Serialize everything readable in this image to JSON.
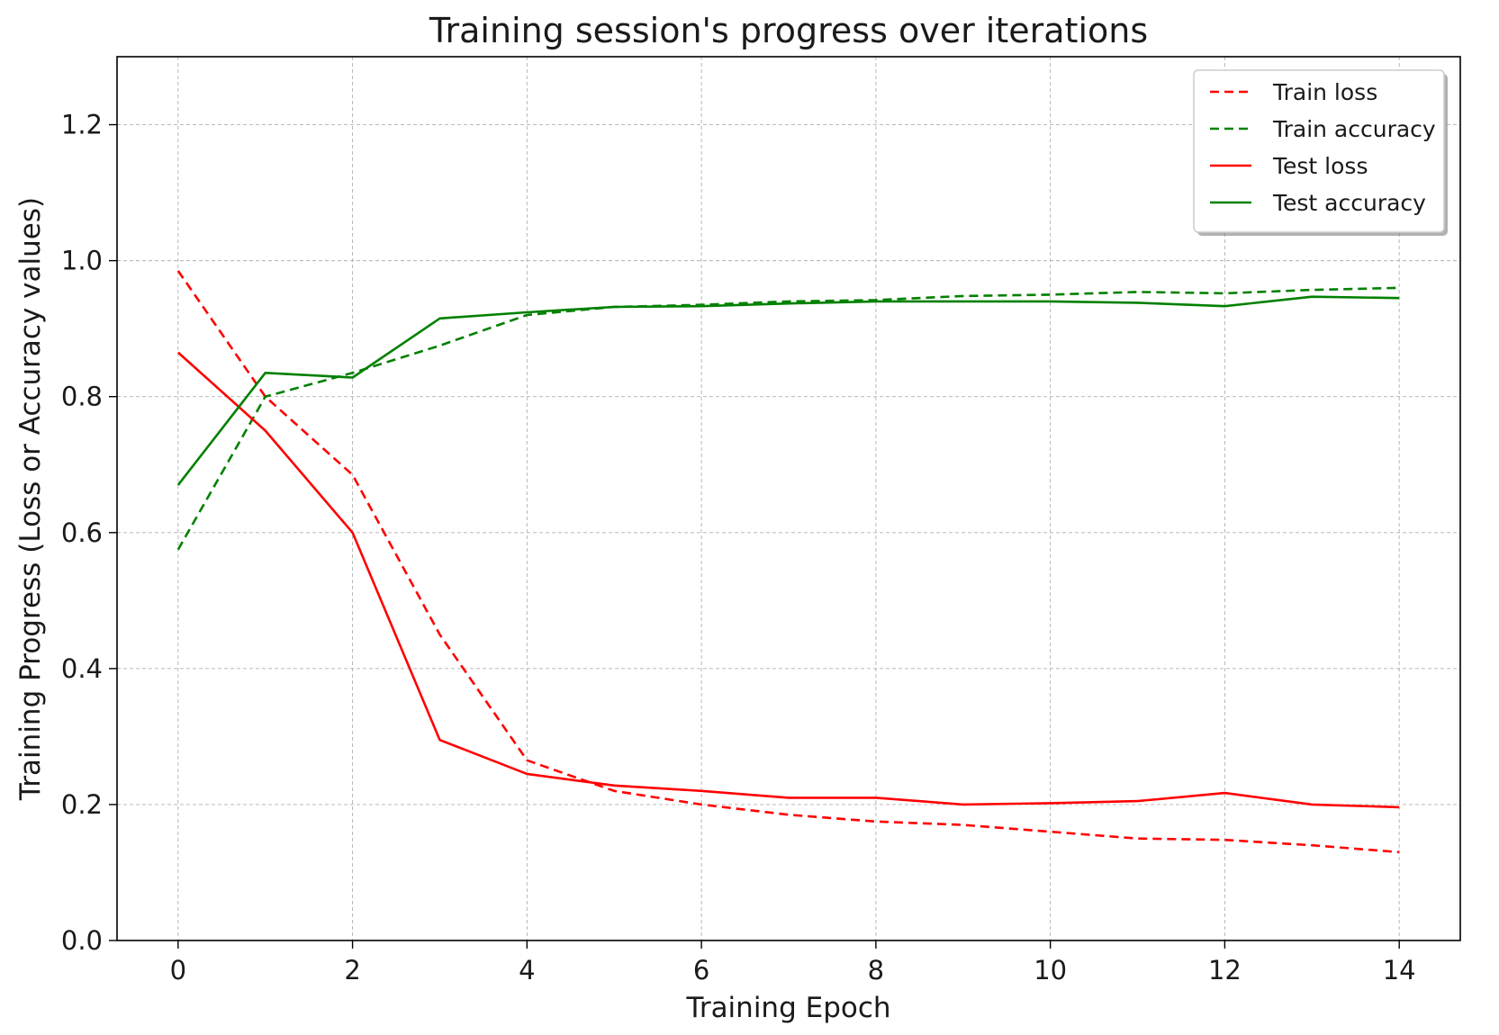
{
  "chart_data": {
    "type": "line",
    "title": "Training session's progress over iterations",
    "xlabel": "Training Epoch",
    "ylabel": "Training Progress (Loss or Accuracy values)",
    "xlim": [
      -0.7,
      14.7
    ],
    "ylim": [
      0.0,
      1.3
    ],
    "x_ticks": [
      0,
      2,
      4,
      6,
      8,
      10,
      12,
      14
    ],
    "x_tick_labels": [
      "0",
      "2",
      "4",
      "6",
      "8",
      "10",
      "12",
      "14"
    ],
    "y_ticks": [
      0.0,
      0.2,
      0.4,
      0.6,
      0.8,
      1.0,
      1.2
    ],
    "y_tick_labels": [
      "0.0",
      "0.2",
      "0.4",
      "0.6",
      "0.8",
      "1.0",
      "1.2"
    ],
    "grid": true,
    "legend_position": "top-right",
    "x": [
      0,
      1,
      2,
      3,
      4,
      5,
      6,
      7,
      8,
      9,
      10,
      11,
      12,
      13,
      14
    ],
    "series": [
      {
        "name": "Train loss",
        "color": "#ff0000",
        "style": "dashed",
        "values": [
          0.985,
          0.8,
          0.685,
          0.45,
          0.265,
          0.22,
          0.2,
          0.185,
          0.175,
          0.17,
          0.16,
          0.15,
          0.148,
          0.14,
          0.13
        ]
      },
      {
        "name": "Train accuracy",
        "color": "#008000",
        "style": "dashed",
        "values": [
          0.575,
          0.8,
          0.835,
          0.875,
          0.92,
          0.932,
          0.935,
          0.94,
          0.942,
          0.948,
          0.95,
          0.954,
          0.952,
          0.957,
          0.96
        ]
      },
      {
        "name": "Test loss",
        "color": "#ff0000",
        "style": "solid",
        "values": [
          0.865,
          0.75,
          0.6,
          0.295,
          0.245,
          0.228,
          0.22,
          0.21,
          0.21,
          0.2,
          0.202,
          0.205,
          0.217,
          0.2,
          0.196
        ]
      },
      {
        "name": "Test accuracy",
        "color": "#008000",
        "style": "solid",
        "values": [
          0.67,
          0.835,
          0.828,
          0.915,
          0.924,
          0.932,
          0.933,
          0.937,
          0.94,
          0.94,
          0.94,
          0.938,
          0.933,
          0.947,
          0.945
        ]
      }
    ]
  }
}
